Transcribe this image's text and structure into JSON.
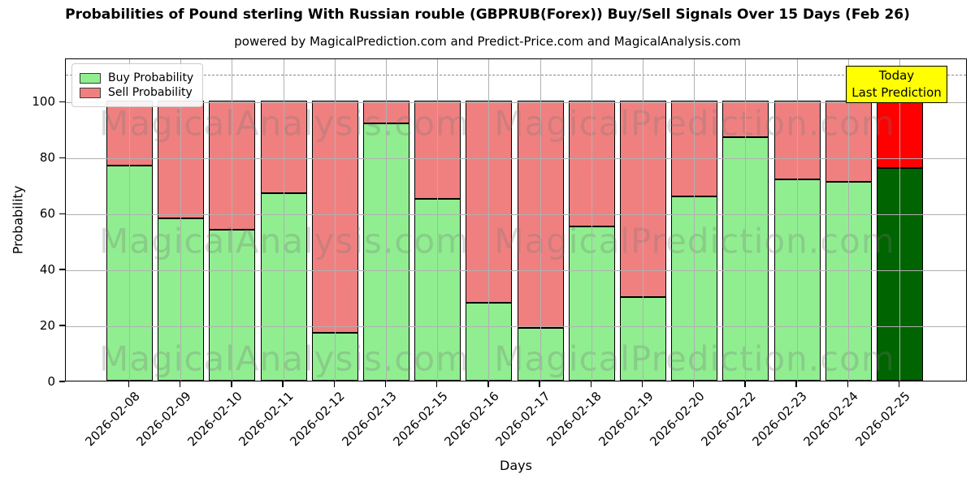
{
  "title": "Probabilities of Pound sterling With Russian rouble (GBPRUB(Forex)) Buy/Sell Signals Over 15 Days (Feb 26)",
  "subtitle": "powered by MagicalPrediction.com and Predict-Price.com and MagicalAnalysis.com",
  "legend": {
    "items": [
      {
        "label": "Buy Probability",
        "color": "#90ee90"
      },
      {
        "label": "Sell Probability",
        "color": "#f08080"
      }
    ]
  },
  "annotation": {
    "lines": [
      "Today",
      "Last Prediction"
    ],
    "bg": "#ffff00"
  },
  "axes": {
    "xlabel": "Days",
    "ylabel": "Probability",
    "yticks": [
      0,
      20,
      40,
      60,
      80,
      100
    ],
    "ylim": [
      0,
      115.5
    ],
    "dashed_line_y": 110,
    "grid_color": "#b0b0b0"
  },
  "watermarks": {
    "texts": [
      "MagicalAnalysis.com",
      "MagicalPrediction.com"
    ],
    "rows": 3
  },
  "chart_data": {
    "type": "bar",
    "stacked": true,
    "title": "Probabilities of Pound sterling With Russian rouble (GBPRUB(Forex)) Buy/Sell Signals Over 15 Days (Feb 26)",
    "xlabel": "Days",
    "ylabel": "Probability",
    "ylim": [
      0,
      115.5
    ],
    "grid": true,
    "legend_position": "upper left",
    "categories": [
      "2026-02-08",
      "2026-02-09",
      "2026-02-10",
      "2026-02-11",
      "2026-02-12",
      "2026-02-13",
      "2026-02-15",
      "2026-02-16",
      "2026-02-17",
      "2026-02-18",
      "2026-02-19",
      "2026-02-20",
      "2026-02-22",
      "2026-02-23",
      "2026-02-24",
      "2026-02-25"
    ],
    "series": [
      {
        "name": "Buy Probability",
        "color": "#90ee90",
        "values": [
          77,
          58,
          54,
          67,
          17,
          92,
          65,
          28,
          19,
          55,
          30,
          66,
          87,
          72,
          71,
          76
        ]
      },
      {
        "name": "Sell Probability",
        "color": "#f08080",
        "values": [
          23,
          42,
          46,
          33,
          83,
          8,
          35,
          72,
          81,
          45,
          70,
          34,
          13,
          28,
          29,
          24
        ]
      }
    ],
    "edge_color": "#000000",
    "last_bar_override": {
      "category": "2026-02-25",
      "buy_color": "#006400",
      "sell_color": "#ff0000"
    }
  }
}
